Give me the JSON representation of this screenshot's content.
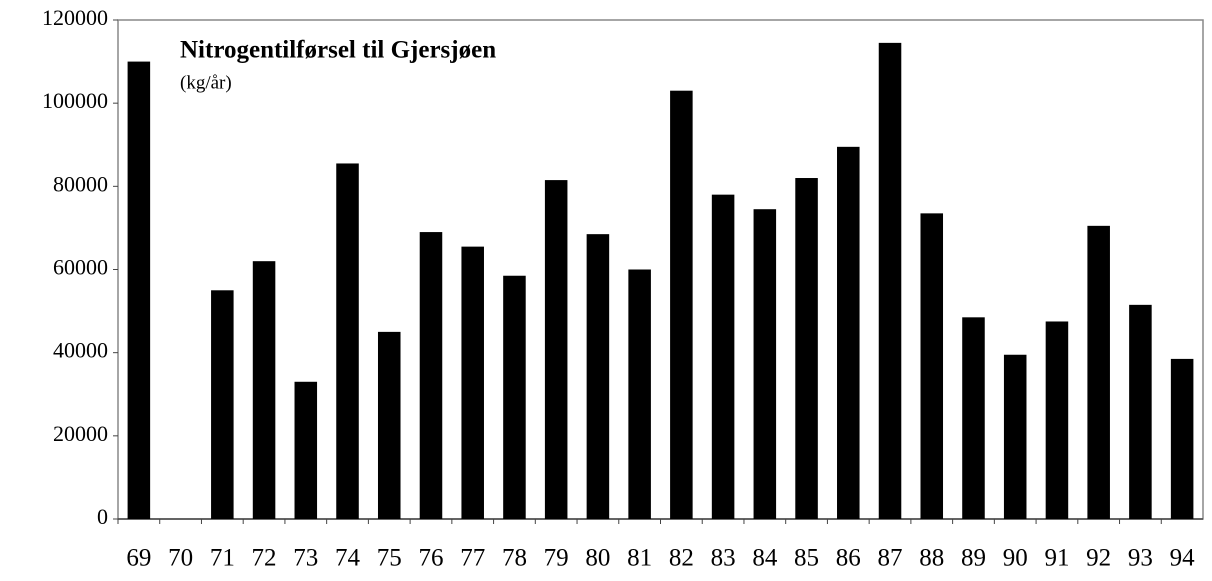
{
  "chart_data": {
    "type": "bar",
    "title": "Nitrogentilførsel til Gjersjøen",
    "subtitle": "(kg/år)",
    "categories": [
      "69",
      "70",
      "71",
      "72",
      "73",
      "74",
      "75",
      "76",
      "77",
      "78",
      "79",
      "80",
      "81",
      "82",
      "83",
      "84",
      "85",
      "86",
      "87",
      "88",
      "89",
      "90",
      "91",
      "92",
      "93",
      "94"
    ],
    "values": [
      110000,
      null,
      55000,
      62000,
      33000,
      85500,
      45000,
      69000,
      65500,
      58500,
      81500,
      68500,
      60000,
      103000,
      78000,
      74500,
      82000,
      89500,
      114500,
      73500,
      48500,
      39500,
      47500,
      70500,
      51500,
      38500
    ],
    "color": "#000000",
    "ylim": [
      0,
      120000
    ],
    "yticks": [
      0,
      20000,
      40000,
      60000,
      80000,
      100000,
      120000
    ],
    "grid": false
  }
}
